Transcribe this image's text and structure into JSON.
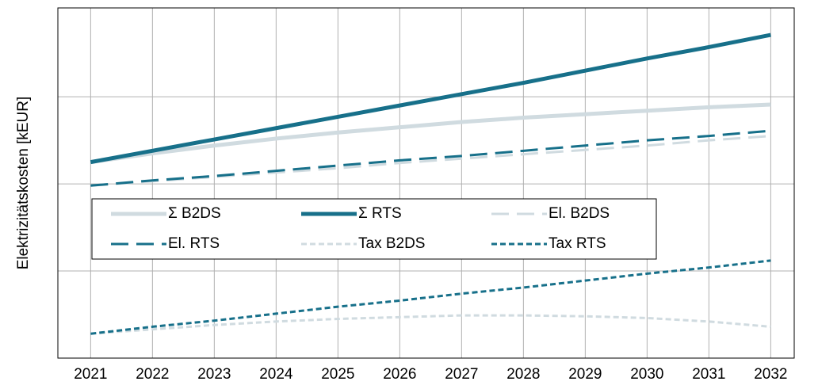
{
  "chart_data": {
    "type": "line",
    "ylabel": "Elektrizitätskosten [kEUR]",
    "x": [
      2021,
      2022,
      2023,
      2024,
      2025,
      2026,
      2027,
      2028,
      2029,
      2030,
      2031,
      2032
    ],
    "xlim": [
      2020.47,
      2032.38
    ],
    "xticks": [
      2021,
      2022,
      2023,
      2024,
      2025,
      2026,
      2027,
      2028,
      2029,
      2030,
      2031,
      2032
    ],
    "ylim": [
      0,
      4.02
    ],
    "yticks": [
      1,
      2,
      3
    ],
    "grid": true,
    "series": [
      {
        "name": "Σ B2DS",
        "color": "#d0dbe0",
        "style": "solid",
        "values": [
          2.25,
          2.35,
          2.44,
          2.52,
          2.59,
          2.65,
          2.71,
          2.76,
          2.8,
          2.84,
          2.88,
          2.91
        ]
      },
      {
        "name": "Σ RTS",
        "color": "#17708a",
        "style": "solid",
        "values": [
          2.25,
          2.38,
          2.51,
          2.64,
          2.77,
          2.9,
          3.03,
          3.16,
          3.3,
          3.44,
          3.57,
          3.71
        ]
      },
      {
        "name": "El. B2DS",
        "color": "#d0dbe0",
        "style": "dashed",
        "values": [
          1.98,
          2.03,
          2.08,
          2.13,
          2.18,
          2.24,
          2.29,
          2.34,
          2.39,
          2.44,
          2.5,
          2.55
        ]
      },
      {
        "name": "El. RTS",
        "color": "#17708a",
        "style": "dashed",
        "values": [
          1.98,
          2.04,
          2.09,
          2.15,
          2.21,
          2.27,
          2.32,
          2.38,
          2.44,
          2.5,
          2.55,
          2.61
        ]
      },
      {
        "name": "Tax B2DS",
        "color": "#d0dbe0",
        "style": "dotted",
        "values": [
          0.28,
          0.33,
          0.38,
          0.42,
          0.45,
          0.47,
          0.49,
          0.49,
          0.48,
          0.46,
          0.42,
          0.36
        ]
      },
      {
        "name": "Tax RTS",
        "color": "#17708a",
        "style": "dotted",
        "values": [
          0.28,
          0.36,
          0.43,
          0.51,
          0.59,
          0.66,
          0.74,
          0.81,
          0.89,
          0.97,
          1.04,
          1.12
        ]
      }
    ]
  }
}
